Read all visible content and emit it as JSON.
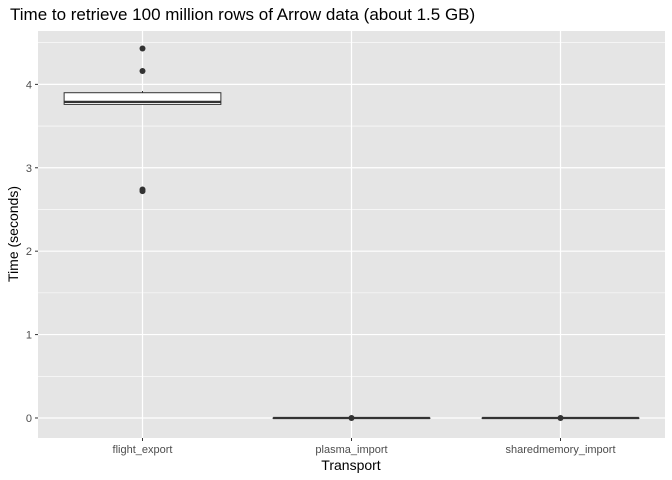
{
  "chart_data": {
    "type": "boxplot",
    "title": "Time to retrieve 100 million rows of Arrow data (about 1.5 GB)",
    "xlabel": "Transport",
    "ylabel": "Time (seconds)",
    "ylim": [
      -0.24,
      4.64
    ],
    "yticks": [
      0,
      1,
      2,
      3,
      4
    ],
    "grid": true,
    "categories": [
      "flight_export",
      "plasma_import",
      "sharedmemory_import"
    ],
    "boxes": [
      {
        "category": "flight_export",
        "q1": 3.76,
        "median": 3.79,
        "q3": 3.9,
        "whisker_low": 3.76,
        "whisker_high": 3.92,
        "outliers": [
          4.43,
          4.16,
          2.74,
          2.72
        ]
      },
      {
        "category": "plasma_import",
        "q1": 0.0,
        "median": 0.0,
        "q3": 0.0,
        "whisker_low": 0.0,
        "whisker_high": 0.0,
        "outliers": [
          0.0
        ]
      },
      {
        "category": "sharedmemory_import",
        "q1": 0.0,
        "median": 0.0,
        "q3": 0.0,
        "whisker_low": 0.0,
        "whisker_high": 0.0,
        "outliers": [
          0.0
        ]
      }
    ],
    "colors": {
      "panel": "#e5e5e5",
      "grid": "#ffffff",
      "box_fill": "#ffffff",
      "box_line": "#333333",
      "point": "#333333"
    }
  }
}
